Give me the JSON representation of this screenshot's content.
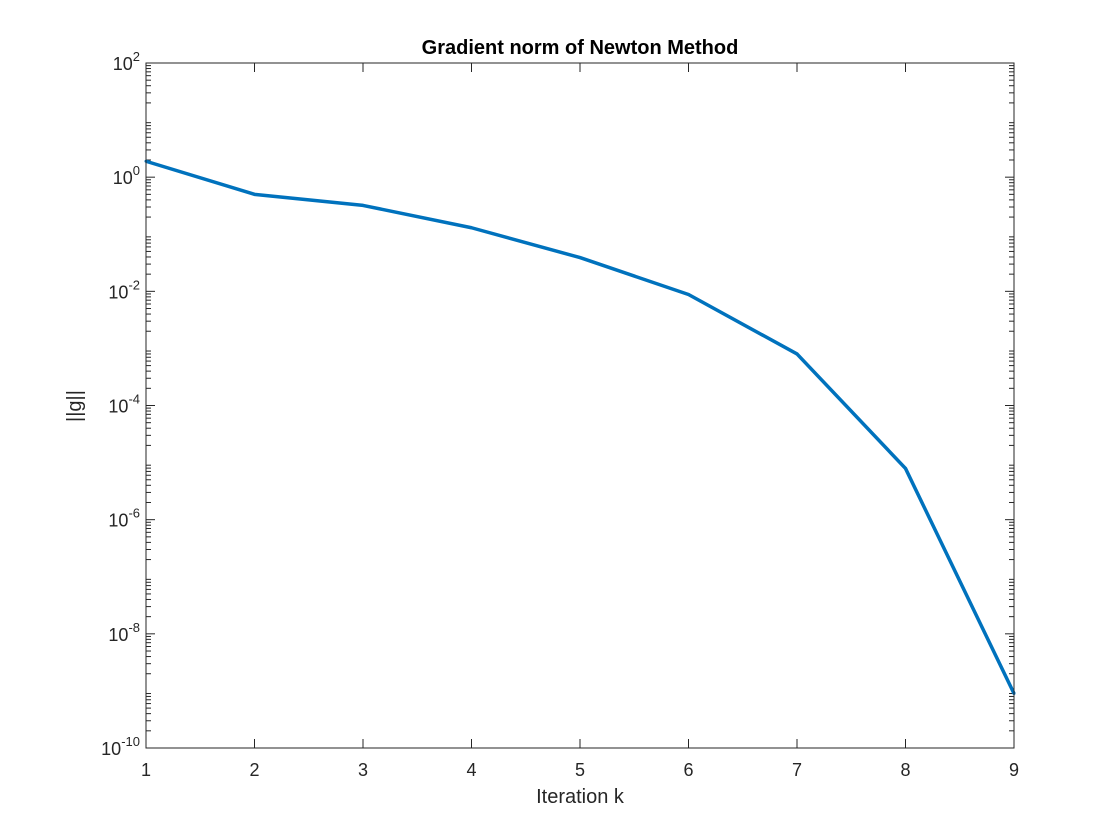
{
  "chart_data": {
    "type": "line",
    "title": "Gradient norm of Newton Method",
    "xlabel": "Iteration k",
    "ylabel": "||g||",
    "xlim": [
      1,
      9
    ],
    "ylim": [
      1e-10,
      100
    ],
    "yscale": "log",
    "grid": false,
    "box": true,
    "x_ticks": [
      1,
      2,
      3,
      4,
      5,
      6,
      7,
      8,
      9
    ],
    "y_tick_exponents": [
      2,
      0,
      -2,
      -4,
      -6,
      -8,
      -10
    ],
    "series": [
      {
        "color": "#0072BD",
        "x": [
          1,
          2,
          3,
          4,
          5,
          6,
          7,
          8,
          9
        ],
        "y": [
          1.9,
          0.5,
          0.32,
          0.13,
          0.039,
          0.0088,
          0.0008,
          7.9e-06,
          9e-10
        ]
      }
    ]
  }
}
